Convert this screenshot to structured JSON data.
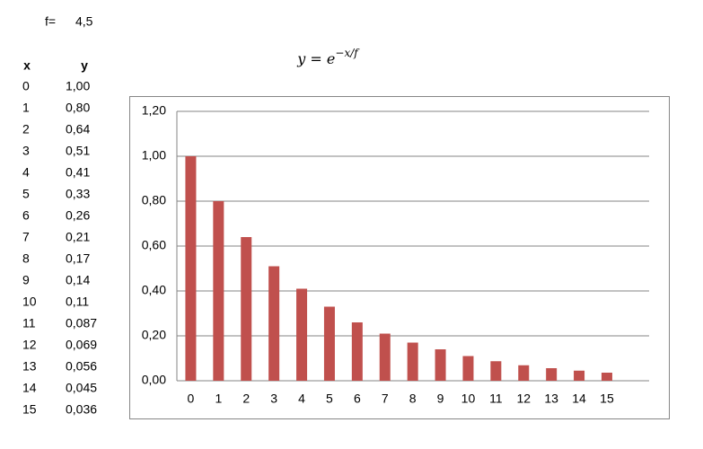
{
  "sheet": {
    "f_label": "f=",
    "f_value": "4,5",
    "headers": [
      "x",
      "y"
    ],
    "rows": [
      [
        "0",
        "1,00"
      ],
      [
        "1",
        "0,80"
      ],
      [
        "2",
        "0,64"
      ],
      [
        "3",
        "0,51"
      ],
      [
        "4",
        "0,41"
      ],
      [
        "5",
        "0,33"
      ],
      [
        "6",
        "0,26"
      ],
      [
        "7",
        "0,21"
      ],
      [
        "8",
        "0,17"
      ],
      [
        "9",
        "0,14"
      ],
      [
        "10",
        "0,11"
      ],
      [
        "11",
        "0,087"
      ],
      [
        "12",
        "0,069"
      ],
      [
        "13",
        "0,056"
      ],
      [
        "14",
        "0,045"
      ],
      [
        "15",
        "0,036"
      ]
    ]
  },
  "chart_data": {
    "type": "bar",
    "title": "y = e",
    "title_exponent": "−x/f",
    "categories": [
      "0",
      "1",
      "2",
      "3",
      "4",
      "5",
      "6",
      "7",
      "8",
      "9",
      "10",
      "11",
      "12",
      "13",
      "14",
      "15"
    ],
    "values": [
      1.0,
      0.8,
      0.64,
      0.51,
      0.41,
      0.33,
      0.26,
      0.21,
      0.17,
      0.14,
      0.11,
      0.087,
      0.069,
      0.056,
      0.045,
      0.036
    ],
    "color": "#c0504d",
    "ylim": [
      0,
      1.2
    ],
    "yticks": [
      {
        "value": 0,
        "label": "0,00"
      },
      {
        "value": 0.2,
        "label": "0,20"
      },
      {
        "value": 0.4,
        "label": "0,40"
      },
      {
        "value": 0.6,
        "label": "0,60"
      },
      {
        "value": 0.8,
        "label": "0,80"
      },
      {
        "value": 1.0,
        "label": "1,00"
      },
      {
        "value": 1.2,
        "label": "1,20"
      }
    ],
    "grid": true
  }
}
